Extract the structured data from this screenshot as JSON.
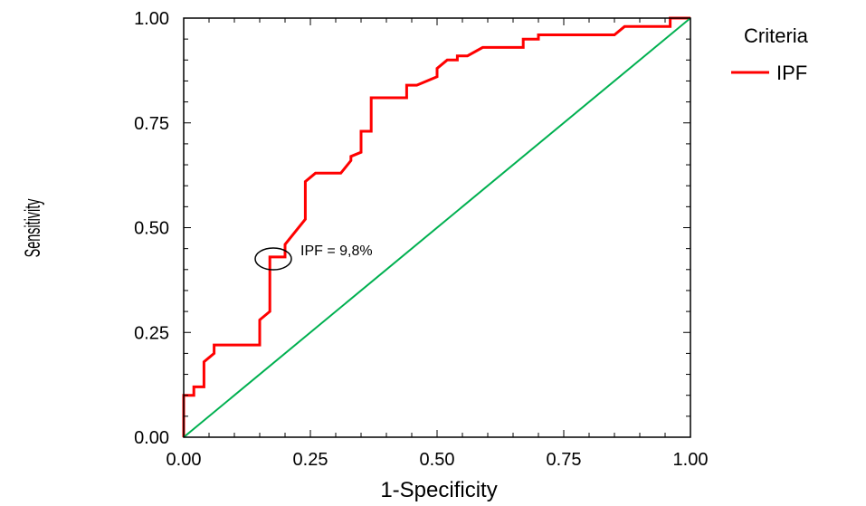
{
  "chart_data": {
    "type": "line",
    "xlabel": "1-Specificity",
    "ylabel": "Sensitivity",
    "xlim": [
      0,
      1
    ],
    "ylim": [
      0,
      1
    ],
    "x_ticks": [
      "0.00",
      "0.25",
      "0.50",
      "0.75",
      "1.00"
    ],
    "y_ticks": [
      "0.00",
      "0.25",
      "0.50",
      "0.75",
      "1.00"
    ],
    "grid": false,
    "legend": {
      "title": "Criteria",
      "position": "top-right-outside",
      "entries": [
        {
          "name": "IPF",
          "color": "#ff0000"
        }
      ]
    },
    "series": [
      {
        "name": "IPF",
        "color": "#ff0000",
        "points": [
          [
            0.0,
            0.0
          ],
          [
            0.0,
            0.1
          ],
          [
            0.02,
            0.1
          ],
          [
            0.02,
            0.12
          ],
          [
            0.04,
            0.12
          ],
          [
            0.04,
            0.18
          ],
          [
            0.06,
            0.2
          ],
          [
            0.06,
            0.22
          ],
          [
            0.15,
            0.22
          ],
          [
            0.15,
            0.28
          ],
          [
            0.17,
            0.3
          ],
          [
            0.17,
            0.43
          ],
          [
            0.2,
            0.43
          ],
          [
            0.2,
            0.46
          ],
          [
            0.24,
            0.52
          ],
          [
            0.24,
            0.61
          ],
          [
            0.26,
            0.63
          ],
          [
            0.31,
            0.63
          ],
          [
            0.33,
            0.66
          ],
          [
            0.33,
            0.67
          ],
          [
            0.35,
            0.68
          ],
          [
            0.35,
            0.73
          ],
          [
            0.37,
            0.73
          ],
          [
            0.37,
            0.81
          ],
          [
            0.44,
            0.81
          ],
          [
            0.44,
            0.84
          ],
          [
            0.46,
            0.84
          ],
          [
            0.5,
            0.86
          ],
          [
            0.5,
            0.88
          ],
          [
            0.52,
            0.9
          ],
          [
            0.54,
            0.9
          ],
          [
            0.54,
            0.91
          ],
          [
            0.56,
            0.91
          ],
          [
            0.59,
            0.93
          ],
          [
            0.67,
            0.93
          ],
          [
            0.67,
            0.95
          ],
          [
            0.7,
            0.95
          ],
          [
            0.7,
            0.96
          ],
          [
            0.85,
            0.96
          ],
          [
            0.87,
            0.98
          ],
          [
            0.96,
            0.98
          ],
          [
            0.96,
            1.0
          ],
          [
            1.0,
            1.0
          ]
        ]
      },
      {
        "name": "",
        "color": "#00b050",
        "points": [
          [
            0,
            0
          ],
          [
            1,
            1
          ]
        ]
      }
    ],
    "annotations": [
      {
        "text": "IPF = 9,8%",
        "x": 0.175,
        "y": 0.43
      }
    ]
  }
}
